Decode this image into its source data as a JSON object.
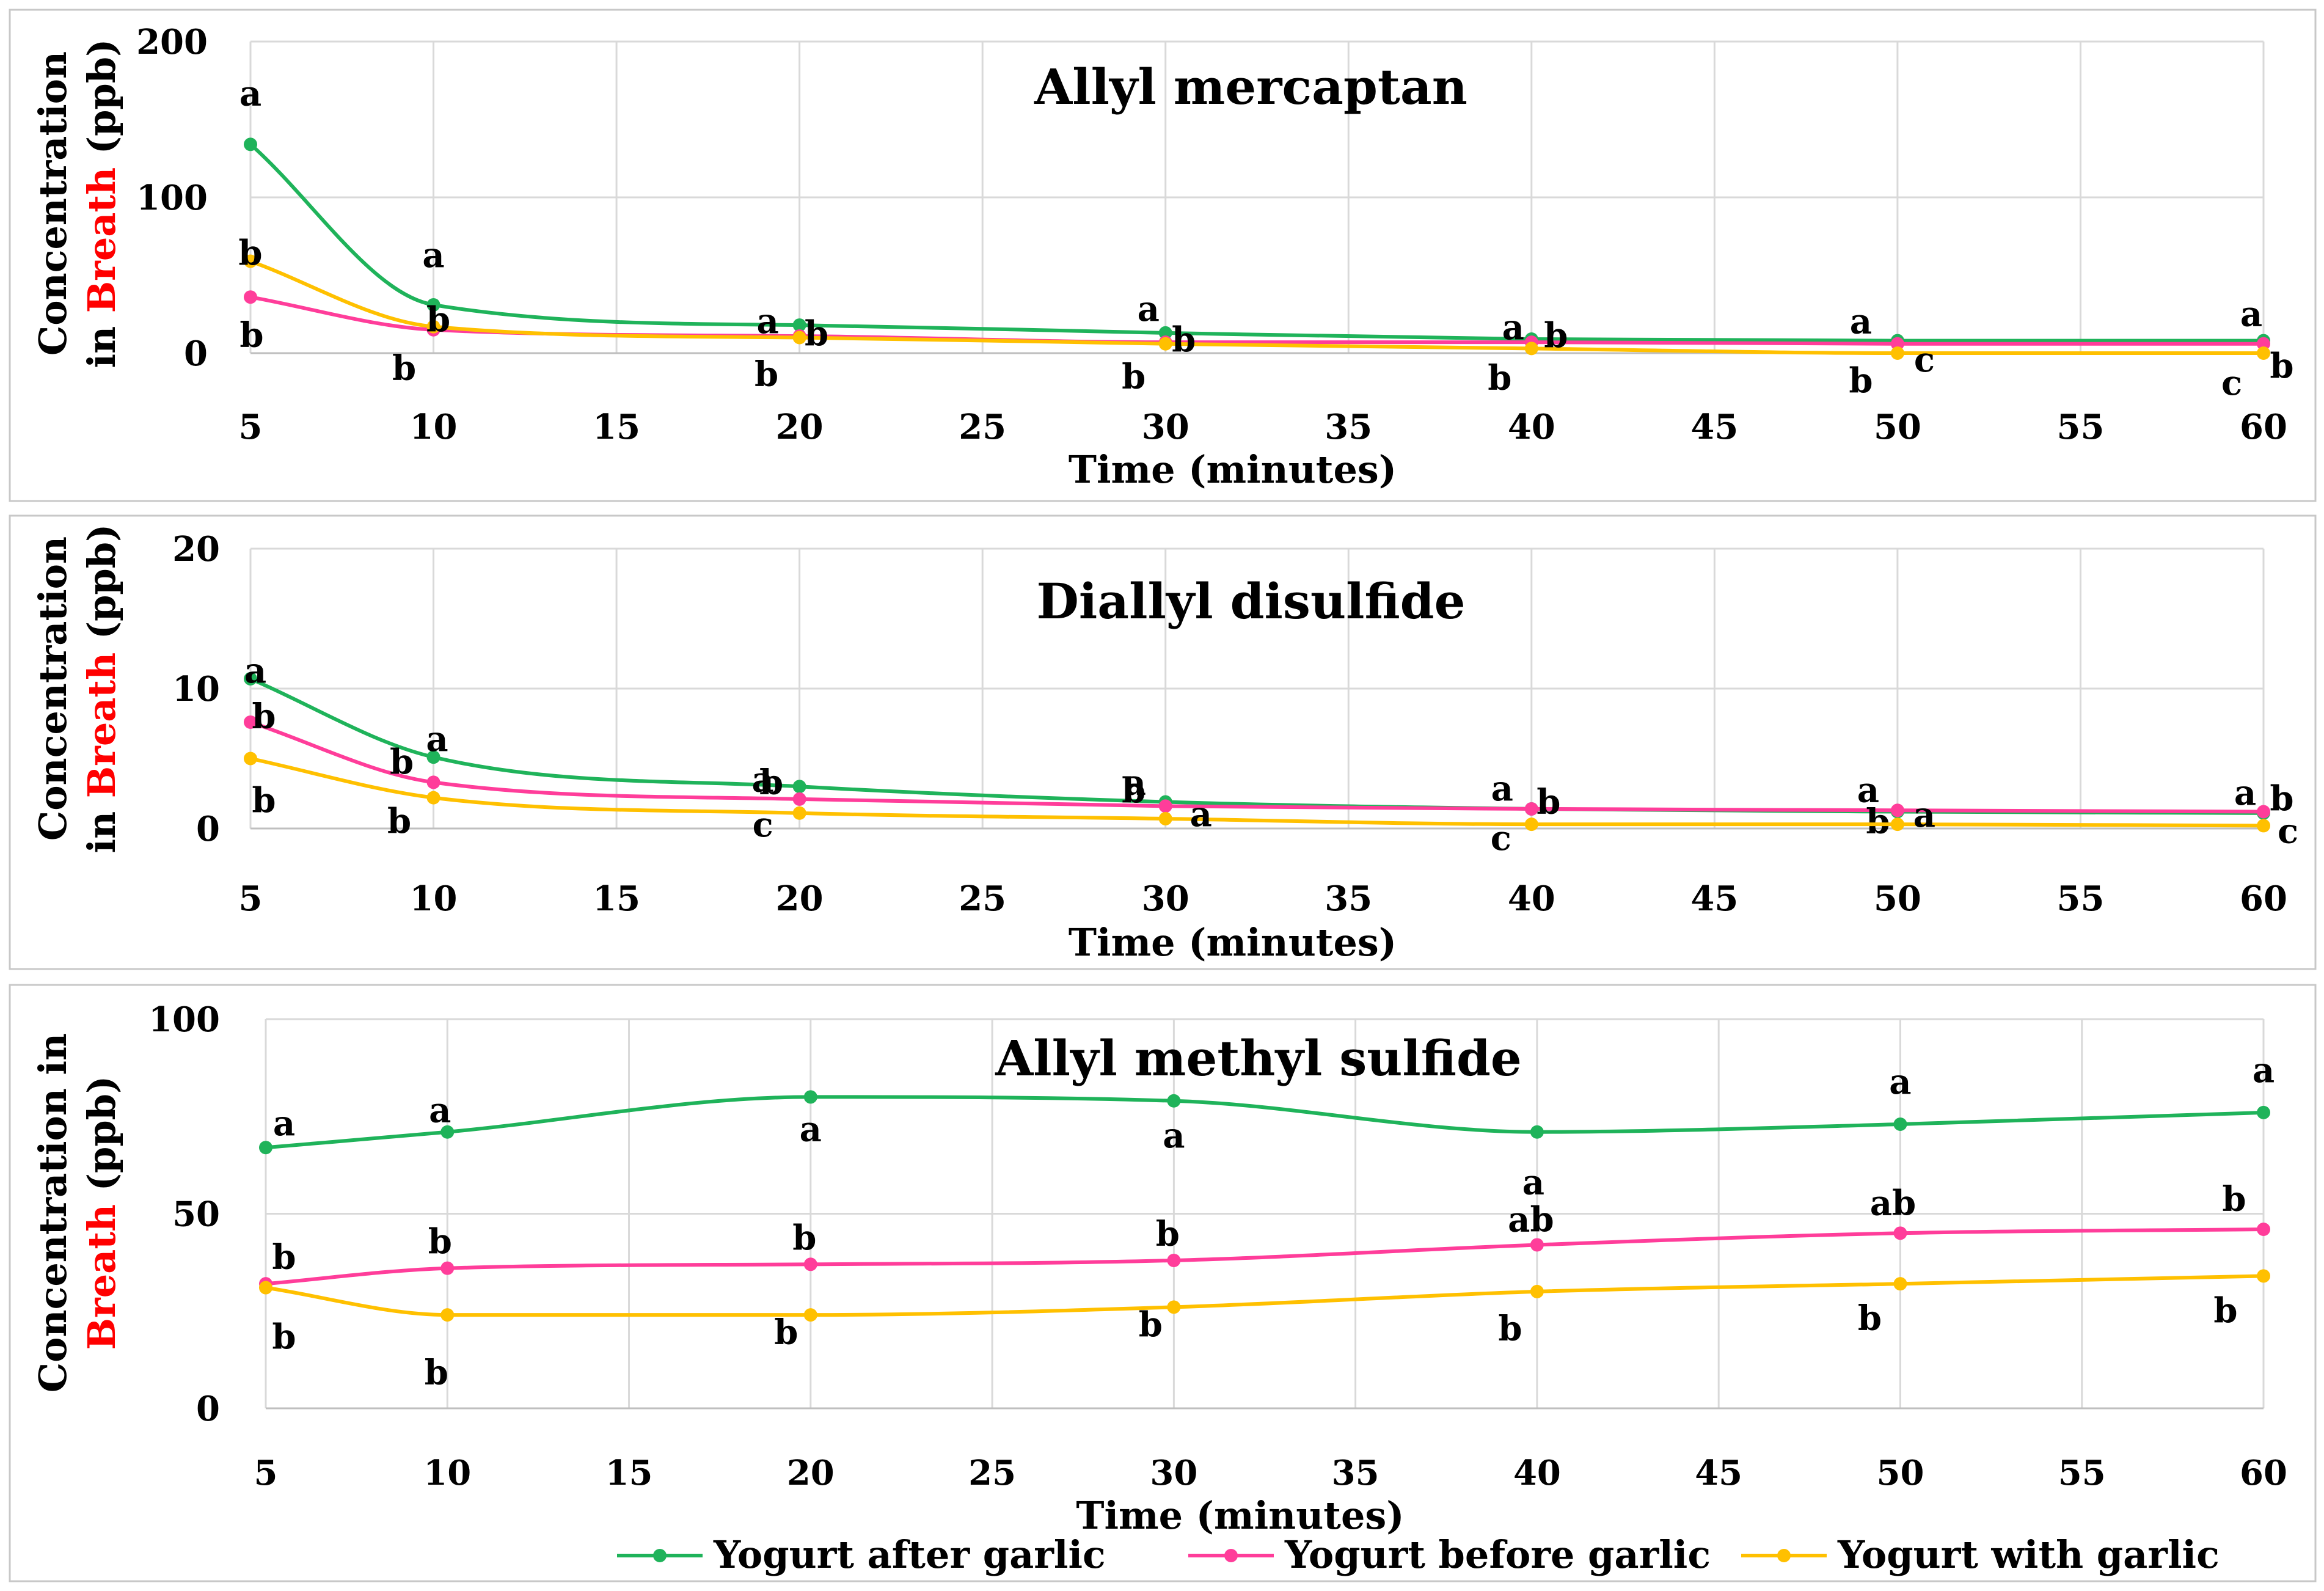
{
  "colors": {
    "Yogurt after garlic": "#1fb35a",
    "Yogurt before garlic": "#ff3d9a",
    "Yogurt with garlic": "#ffc000"
  },
  "legend": [
    "Yogurt after garlic",
    "Yogurt before garlic",
    "Yogurt with garlic"
  ],
  "chart_data": [
    {
      "type": "line",
      "title": "Allyl mercaptan",
      "xlabel": "Time (minutes)",
      "ylabel_lines": [
        [
          "Concentration"
        ],
        [
          "in ",
          "Breath",
          " (ppb)"
        ]
      ],
      "xlim": [
        5,
        60
      ],
      "xticks": [
        5,
        10,
        15,
        20,
        25,
        30,
        35,
        40,
        45,
        50,
        55,
        60
      ],
      "ylim": [
        0,
        200
      ],
      "yticks": [
        0,
        100,
        200
      ],
      "x": [
        5,
        10,
        20,
        30,
        40,
        50,
        60
      ],
      "series": [
        {
          "name": "Yogurt after garlic",
          "values": [
            134,
            31,
            18,
            13,
            9,
            8,
            8
          ],
          "labels": [
            "a",
            "a",
            "a",
            "a",
            "a",
            "a",
            "a"
          ]
        },
        {
          "name": "Yogurt before garlic",
          "values": [
            36,
            15,
            11,
            7,
            7,
            6,
            6
          ],
          "labels": [
            "b",
            "b",
            "b",
            "b",
            "b",
            "b",
            "b"
          ]
        },
        {
          "name": "Yogurt with garlic",
          "values": [
            59,
            17,
            10,
            6,
            3,
            0,
            0
          ],
          "labels": [
            "b",
            "b",
            "b",
            "b",
            "b",
            "c",
            "c"
          ]
        }
      ]
    },
    {
      "type": "line",
      "title": "Diallyl disulfide",
      "xlabel": "Time (minutes)",
      "ylabel_lines": [
        [
          "Concentration"
        ],
        [
          "in ",
          "Breath",
          " (ppb)"
        ]
      ],
      "xlim": [
        5,
        60
      ],
      "xticks": [
        5,
        10,
        15,
        20,
        25,
        30,
        35,
        40,
        45,
        50,
        55,
        60
      ],
      "ylim": [
        0,
        20
      ],
      "yticks": [
        0,
        10,
        20
      ],
      "x": [
        5,
        10,
        20,
        30,
        40,
        50,
        60
      ],
      "series": [
        {
          "name": "Yogurt after garlic",
          "values": [
            10.7,
            5.1,
            3.0,
            1.9,
            1.4,
            1.2,
            1.1
          ],
          "labels": [
            "a",
            "a",
            "a",
            "a",
            "a",
            "a",
            "a"
          ]
        },
        {
          "name": "Yogurt before garlic",
          "values": [
            7.6,
            3.3,
            2.1,
            1.6,
            1.4,
            1.3,
            1.2
          ],
          "labels": [
            "b",
            "b",
            "b",
            "b",
            "b",
            "b",
            "b"
          ]
        },
        {
          "name": "Yogurt with garlic",
          "values": [
            5.0,
            2.2,
            1.1,
            0.7,
            0.3,
            0.3,
            0.2
          ],
          "labels": [
            "b",
            "b",
            "c",
            "a",
            "c",
            "a",
            "c"
          ]
        }
      ]
    },
    {
      "type": "line",
      "title": "Allyl methyl sulfide",
      "xlabel": "Time (minutes)",
      "ylabel_lines": [
        [
          "Concentration in"
        ],
        [
          "Breath",
          " (ppb)"
        ]
      ],
      "xlim": [
        5,
        60
      ],
      "xticks": [
        5,
        10,
        15,
        20,
        25,
        30,
        35,
        40,
        45,
        50,
        55,
        60
      ],
      "ylim": [
        0,
        100
      ],
      "yticks": [
        0,
        50,
        100
      ],
      "x": [
        5,
        10,
        20,
        30,
        40,
        50,
        60
      ],
      "series": [
        {
          "name": "Yogurt after garlic",
          "values": [
            67,
            71,
            80,
            79,
            71,
            73,
            76
          ],
          "labels": [
            "a",
            "a",
            "a",
            "a",
            "a",
            "a",
            "a"
          ]
        },
        {
          "name": "Yogurt before garlic",
          "values": [
            32,
            36,
            37,
            38,
            42,
            45,
            46
          ],
          "labels": [
            "b",
            "b",
            "b",
            "b",
            "ab",
            "ab",
            "b"
          ]
        },
        {
          "name": "Yogurt with garlic",
          "values": [
            31,
            24,
            24,
            26,
            30,
            32,
            34
          ],
          "labels": [
            "b",
            "b",
            "b",
            "b",
            "b",
            "b",
            "b"
          ]
        }
      ]
    }
  ]
}
